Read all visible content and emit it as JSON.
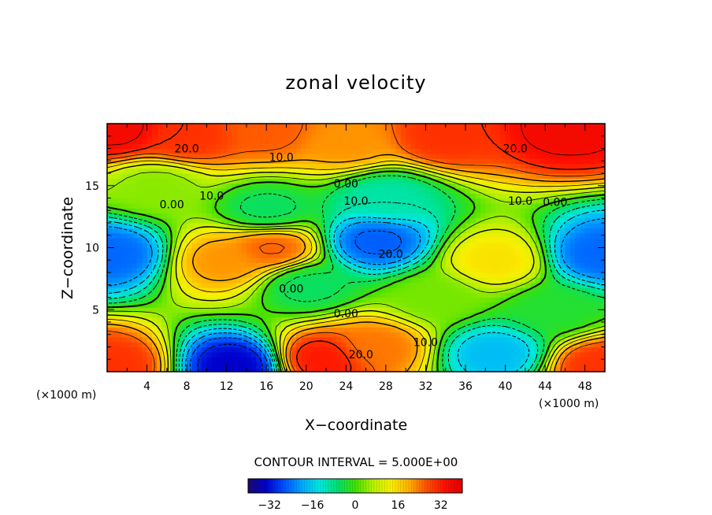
{
  "chart_data": {
    "type": "heatmap",
    "title": "zonal velocity",
    "xlabel": "X−coordinate",
    "ylabel": "Z−coordinate",
    "x_unit": "(×1000 m)",
    "xlim": [
      0,
      50
    ],
    "ylim": [
      0,
      20
    ],
    "x_ticks": [
      4,
      8,
      12,
      16,
      20,
      24,
      28,
      32,
      36,
      40,
      44,
      48
    ],
    "y_ticks": [
      5,
      10,
      15
    ],
    "contour_interval_text": "CONTOUR INTERVAL = 5.000E+00",
    "colorbar": {
      "range": [
        -40,
        40
      ],
      "ticks": [
        -32,
        -16,
        0,
        16,
        32
      ],
      "tick_labels": [
        "−32",
        "−16",
        "0",
        "16",
        "32"
      ],
      "palette": [
        "#1a0a6e",
        "#0000cd",
        "#0050ff",
        "#00a8ff",
        "#00e8e0",
        "#00e070",
        "#40e000",
        "#b8f000",
        "#f8f000",
        "#ffb000",
        "#ff5000",
        "#ff1000",
        "#e00000"
      ]
    },
    "contour_labels": [
      {
        "text": "20.0",
        "x": 8.0,
        "z": 17.8
      },
      {
        "text": "10.0",
        "x": 17.5,
        "z": 17.1
      },
      {
        "text": "20.0",
        "x": 41.0,
        "z": 17.8
      },
      {
        "text": "0.00",
        "x": 24.0,
        "z": 15.0
      },
      {
        "text": "0.00",
        "x": 6.5,
        "z": 13.3
      },
      {
        "text": "10.0",
        "x": 10.5,
        "z": 14.0
      },
      {
        "text": "10.0",
        "x": 25.0,
        "z": 13.6
      },
      {
        "text": "10.0",
        "x": 41.5,
        "z": 13.6
      },
      {
        "text": "0.00",
        "x": 45.0,
        "z": 13.5
      },
      {
        "text": "20.0",
        "x": 28.5,
        "z": 9.3
      },
      {
        "text": "0.00",
        "x": 18.5,
        "z": 6.5
      },
      {
        "text": "0.00",
        "x": 24.0,
        "z": 4.5
      },
      {
        "text": "10.0",
        "x": 32.0,
        "z": 2.2
      },
      {
        "text": "20.0",
        "x": 25.5,
        "z": 1.2
      }
    ],
    "field_features": [
      {
        "x": 1.0,
        "z": 19.6,
        "u": 36
      },
      {
        "x": 8.0,
        "z": 19.0,
        "u": 30
      },
      {
        "x": 16.0,
        "z": 19.5,
        "u": 26
      },
      {
        "x": 24.0,
        "z": 18.5,
        "u": 22
      },
      {
        "x": 34.0,
        "z": 19.0,
        "u": 30
      },
      {
        "x": 46.0,
        "z": 19.6,
        "u": 36
      },
      {
        "x": 0.5,
        "z": 9.5,
        "u": -25
      },
      {
        "x": 49.5,
        "z": 9.5,
        "u": -25
      },
      {
        "x": 27.0,
        "z": 10.5,
        "u": -26
      },
      {
        "x": 28.0,
        "z": 14.0,
        "u": -10
      },
      {
        "x": 13.0,
        "z": 0.5,
        "u": -34
      },
      {
        "x": 39.0,
        "z": 1.5,
        "u": -18
      },
      {
        "x": 12.0,
        "z": 9.0,
        "u": 22
      },
      {
        "x": 16.5,
        "z": 10.0,
        "u": 26
      },
      {
        "x": 39.0,
        "z": 9.0,
        "u": 15
      },
      {
        "x": 21.5,
        "z": 1.0,
        "u": 33
      },
      {
        "x": 27.0,
        "z": 2.0,
        "u": 24
      },
      {
        "x": 0.5,
        "z": 0.5,
        "u": 30
      },
      {
        "x": 49.5,
        "z": 0.5,
        "u": 30
      },
      {
        "x": 20.0,
        "z": 7.0,
        "u": -6
      },
      {
        "x": 16.0,
        "z": 13.0,
        "u": -6
      },
      {
        "x": 5.0,
        "z": 15.0,
        "u": 4
      },
      {
        "x": 33.0,
        "z": 6.0,
        "u": 3
      },
      {
        "x": 45.0,
        "z": 5.0,
        "u": -3
      }
    ]
  }
}
